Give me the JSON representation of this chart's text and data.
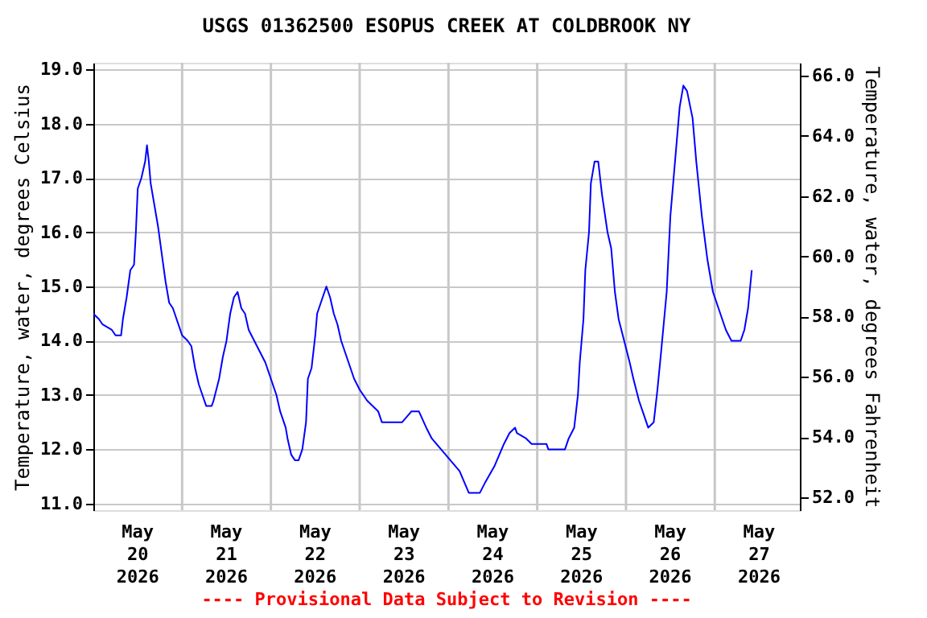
{
  "chart_data": {
    "type": "line",
    "title": "USGS 01362500 ESOPUS CREEK AT COLDBROOK NY",
    "ylabel": "Temperature, water, degrees Celsius",
    "y2label": "Temperature, water, degrees Fahrenheit",
    "annotations": [
      "---- Provisional Data Subject to Revision ----"
    ],
    "grid": true,
    "xlim": [
      "2026-05-20T00:00",
      "2026-05-27T23:00"
    ],
    "xticks": [
      {
        "value": "2026-05-20T12:00",
        "label": "May\n20\n2026"
      },
      {
        "value": "2026-05-21T12:00",
        "label": "May\n21\n2026"
      },
      {
        "value": "2026-05-22T12:00",
        "label": "May\n22\n2026"
      },
      {
        "value": "2026-05-23T12:00",
        "label": "May\n23\n2026"
      },
      {
        "value": "2026-05-24T12:00",
        "label": "May\n24\n2026"
      },
      {
        "value": "2026-05-25T12:00",
        "label": "May\n25\n2026"
      },
      {
        "value": "2026-05-26T12:00",
        "label": "May\n26\n2026"
      },
      {
        "value": "2026-05-27T12:00",
        "label": "May\n27\n2026"
      },
      {
        "value": "2026-05-21T00:00",
        "label": null
      },
      {
        "value": "2026-05-22T00:00",
        "label": null
      },
      {
        "value": "2026-05-23T00:00",
        "label": null
      },
      {
        "value": "2026-05-24T00:00",
        "label": null
      },
      {
        "value": "2026-05-25T00:00",
        "label": null
      },
      {
        "value": "2026-05-26T00:00",
        "label": null
      },
      {
        "value": "2026-05-27T00:00",
        "label": null
      }
    ],
    "ylim": [
      10.88,
      19.12
    ],
    "yticks": [
      {
        "value": 11,
        "label": "11.0"
      },
      {
        "value": 12,
        "label": "12.0"
      },
      {
        "value": 13,
        "label": "13.0"
      },
      {
        "value": 14,
        "label": "14.0"
      },
      {
        "value": 15,
        "label": "15.0"
      },
      {
        "value": 16,
        "label": "16.0"
      },
      {
        "value": 17,
        "label": "17.0"
      },
      {
        "value": 18,
        "label": "18.0"
      },
      {
        "value": 19,
        "label": "19.0"
      }
    ],
    "y2lim": [
      51.58,
      66.42
    ],
    "y2ticks": [
      {
        "value": 52,
        "label": "52.0"
      },
      {
        "value": 54,
        "label": "54.0"
      },
      {
        "value": 56,
        "label": "56.0"
      },
      {
        "value": 58,
        "label": "58.0"
      },
      {
        "value": 60,
        "label": "60.0"
      },
      {
        "value": 62,
        "label": "62.0"
      },
      {
        "value": 64,
        "label": "64.0"
      },
      {
        "value": 66,
        "label": "66.0"
      }
    ],
    "x": [
      "2026-05-20T00:00",
      "2026-05-20T01:30",
      "2026-05-20T02:30",
      "2026-05-20T05:00",
      "2026-05-20T06:00",
      "2026-05-20T07:30",
      "2026-05-20T08:00",
      "2026-05-20T09:00",
      "2026-05-20T10:00",
      "2026-05-20T11:00",
      "2026-05-20T11:30",
      "2026-05-20T12:00",
      "2026-05-20T13:00",
      "2026-05-20T14:00",
      "2026-05-20T14:30",
      "2026-05-20T15:00",
      "2026-05-20T15:30",
      "2026-05-20T16:30",
      "2026-05-20T17:30",
      "2026-05-20T18:30",
      "2026-05-20T19:30",
      "2026-05-20T20:30",
      "2026-05-20T21:30",
      "2026-05-20T22:30",
      "2026-05-21T00:00",
      "2026-05-21T01:30",
      "2026-05-21T02:30",
      "2026-05-21T03:30",
      "2026-05-21T04:30",
      "2026-05-21T05:30",
      "2026-05-21T06:30",
      "2026-05-21T08:00",
      "2026-05-21T08:30",
      "2026-05-21T10:00",
      "2026-05-21T11:00",
      "2026-05-21T12:00",
      "2026-05-21T13:00",
      "2026-05-21T14:00",
      "2026-05-21T15:00",
      "2026-05-21T16:00",
      "2026-05-21T17:00",
      "2026-05-21T18:00",
      "2026-05-21T19:30",
      "2026-05-21T21:00",
      "2026-05-21T22:30",
      "2026-05-22T00:00",
      "2026-05-22T01:30",
      "2026-05-22T02:30",
      "2026-05-22T04:00",
      "2026-05-22T04:30",
      "2026-05-22T05:30",
      "2026-05-22T06:30",
      "2026-05-22T07:30",
      "2026-05-22T08:30",
      "2026-05-22T09:30",
      "2026-05-22T10:00",
      "2026-05-22T11:00",
      "2026-05-22T12:00",
      "2026-05-22T12:30",
      "2026-05-22T13:30",
      "2026-05-22T15:00",
      "2026-05-22T16:00",
      "2026-05-22T17:00",
      "2026-05-22T18:00",
      "2026-05-22T19:00",
      "2026-05-22T20:30",
      "2026-05-22T21:30",
      "2026-05-22T22:30",
      "2026-05-23T00:00",
      "2026-05-23T02:00",
      "2026-05-23T03:30",
      "2026-05-23T05:00",
      "2026-05-23T06:00",
      "2026-05-23T11:30",
      "2026-05-23T14:00",
      "2026-05-23T16:00",
      "2026-05-23T18:00",
      "2026-05-23T19:30",
      "2026-05-23T22:00",
      "2026-05-24T00:30",
      "2026-05-24T03:00",
      "2026-05-24T05:30",
      "2026-05-24T08:30",
      "2026-05-24T10:00",
      "2026-05-24T12:30",
      "2026-05-24T15:00",
      "2026-05-24T16:30",
      "2026-05-24T18:00",
      "2026-05-24T18:30",
      "2026-05-24T21:00",
      "2026-05-24T22:30",
      "2026-05-25T02:30",
      "2026-05-25T03:00",
      "2026-05-25T07:30",
      "2026-05-25T08:30",
      "2026-05-25T10:00",
      "2026-05-25T11:00",
      "2026-05-25T11:30",
      "2026-05-25T12:30",
      "2026-05-25T13:00",
      "2026-05-25T14:00",
      "2026-05-25T14:30",
      "2026-05-25T15:30",
      "2026-05-25T16:30",
      "2026-05-25T17:30",
      "2026-05-25T19:00",
      "2026-05-25T20:00",
      "2026-05-25T21:00",
      "2026-05-25T22:00",
      "2026-05-25T23:30",
      "2026-05-26T01:00",
      "2026-05-26T02:00",
      "2026-05-26T03:30",
      "2026-05-26T04:30",
      "2026-05-26T06:00",
      "2026-05-26T07:30",
      "2026-05-26T08:30",
      "2026-05-26T09:30",
      "2026-05-26T11:00",
      "2026-05-26T12:00",
      "2026-05-26T13:30",
      "2026-05-26T14:30",
      "2026-05-26T15:30",
      "2026-05-26T16:30",
      "2026-05-26T18:00",
      "2026-05-26T19:00",
      "2026-05-26T20:30",
      "2026-05-26T22:00",
      "2026-05-26T23:30",
      "2026-05-27T01:30",
      "2026-05-27T03:00",
      "2026-05-27T04:30",
      "2026-05-27T07:00",
      "2026-05-27T08:00",
      "2026-05-27T09:00",
      "2026-05-27T10:00"
    ],
    "series": [
      {
        "color": "#0000ff",
        "values": [
          14.5,
          14.4,
          14.3,
          14.2,
          14.1,
          14.1,
          14.4,
          14.8,
          15.3,
          15.4,
          16.0,
          16.8,
          17.0,
          17.3,
          17.6,
          17.3,
          16.9,
          16.5,
          16.1,
          15.6,
          15.1,
          14.7,
          14.6,
          14.4,
          14.1,
          14.0,
          13.9,
          13.5,
          13.2,
          13.0,
          12.8,
          12.8,
          12.9,
          13.3,
          13.7,
          14.0,
          14.5,
          14.8,
          14.9,
          14.6,
          14.5,
          14.2,
          14.0,
          13.8,
          13.6,
          13.3,
          13.0,
          12.7,
          12.4,
          12.2,
          11.9,
          11.8,
          11.8,
          12.0,
          12.5,
          13.3,
          13.5,
          14.1,
          14.5,
          14.7,
          15.0,
          14.8,
          14.5,
          14.3,
          14.0,
          13.7,
          13.5,
          13.3,
          13.1,
          12.9,
          12.8,
          12.7,
          12.5,
          12.5,
          12.7,
          12.7,
          12.4,
          12.2,
          12.0,
          11.8,
          11.6,
          11.2,
          11.2,
          11.4,
          11.7,
          12.1,
          12.3,
          12.4,
          12.3,
          12.2,
          12.1,
          12.1,
          12.0,
          12.0,
          12.2,
          12.4,
          13.0,
          13.6,
          14.4,
          15.3,
          16.0,
          16.9,
          17.3,
          17.3,
          16.7,
          16.0,
          15.7,
          14.9,
          14.4,
          14.0,
          13.6,
          13.3,
          12.9,
          12.7,
          12.4,
          12.5,
          13.1,
          13.8,
          14.9,
          16.3,
          17.5,
          18.3,
          18.7,
          18.6,
          18.1,
          17.3,
          16.3,
          15.5,
          14.9,
          14.5,
          14.2,
          14.0,
          14.0,
          14.2,
          14.6,
          15.3
        ]
      }
    ]
  }
}
